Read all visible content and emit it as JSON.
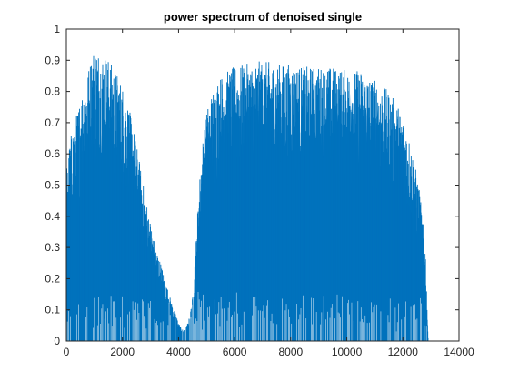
{
  "chart_data": {
    "type": "bar",
    "title": "power spectrum of denoised single",
    "xlabel": "",
    "ylabel": "",
    "xlim": [
      0,
      14000
    ],
    "ylim": [
      0,
      1
    ],
    "x_ticks": [
      0,
      2000,
      4000,
      6000,
      8000,
      10000,
      12000,
      14000
    ],
    "y_ticks": [
      0,
      0.1,
      0.2,
      0.3,
      0.4,
      0.5,
      0.6,
      0.7,
      0.8,
      0.9,
      1
    ],
    "x_tick_labels": [
      "0",
      "2000",
      "4000",
      "6000",
      "8000",
      "10000",
      "12000",
      "14000"
    ],
    "y_tick_labels": [
      "0",
      "0.1",
      "0.2",
      "0.3",
      "0.4",
      "0.5",
      "0.6",
      "0.7",
      "0.8",
      "0.9",
      "1"
    ],
    "grid": false,
    "box": true,
    "color": "#0072BD",
    "envelope": {
      "x": [
        0,
        100,
        200,
        400,
        600,
        800,
        1000,
        1200,
        1400,
        1600,
        1800,
        2000,
        2200,
        2400,
        2600,
        2800,
        3000,
        3200,
        3400,
        3500,
        3600,
        3800,
        4000,
        4100,
        4200,
        4300,
        4400,
        4500,
        4600,
        4700,
        4800,
        4900,
        5000,
        5200,
        5400,
        5600,
        5800,
        6000,
        6500,
        7000,
        7500,
        8000,
        8500,
        9000,
        9500,
        10000,
        10500,
        11000,
        11500,
        11800,
        12000,
        12200,
        12400,
        12600,
        12800,
        12900
      ],
      "peak": [
        0.55,
        0.62,
        0.68,
        0.74,
        0.82,
        0.88,
        0.95,
        0.93,
        0.92,
        0.89,
        0.86,
        0.82,
        0.76,
        0.68,
        0.58,
        0.47,
        0.38,
        0.3,
        0.24,
        0.2,
        0.17,
        0.11,
        0.06,
        0.04,
        0.035,
        0.05,
        0.08,
        0.14,
        0.28,
        0.45,
        0.58,
        0.68,
        0.74,
        0.8,
        0.84,
        0.86,
        0.87,
        0.88,
        0.89,
        0.9,
        0.89,
        0.89,
        0.88,
        0.88,
        0.88,
        0.87,
        0.87,
        0.84,
        0.8,
        0.76,
        0.72,
        0.66,
        0.58,
        0.48,
        0.3,
        0.0
      ],
      "fill": [
        0.28,
        0.34,
        0.42,
        0.5,
        0.58,
        0.63,
        0.66,
        0.66,
        0.65,
        0.64,
        0.61,
        0.56,
        0.5,
        0.43,
        0.36,
        0.29,
        0.22,
        0.17,
        0.14,
        0.12,
        0.1,
        0.06,
        0.03,
        0.025,
        0.02,
        0.03,
        0.05,
        0.09,
        0.2,
        0.33,
        0.45,
        0.54,
        0.6,
        0.65,
        0.67,
        0.68,
        0.68,
        0.69,
        0.7,
        0.71,
        0.71,
        0.71,
        0.71,
        0.71,
        0.7,
        0.7,
        0.69,
        0.66,
        0.6,
        0.56,
        0.52,
        0.46,
        0.38,
        0.28,
        0.15,
        0.0
      ]
    }
  }
}
